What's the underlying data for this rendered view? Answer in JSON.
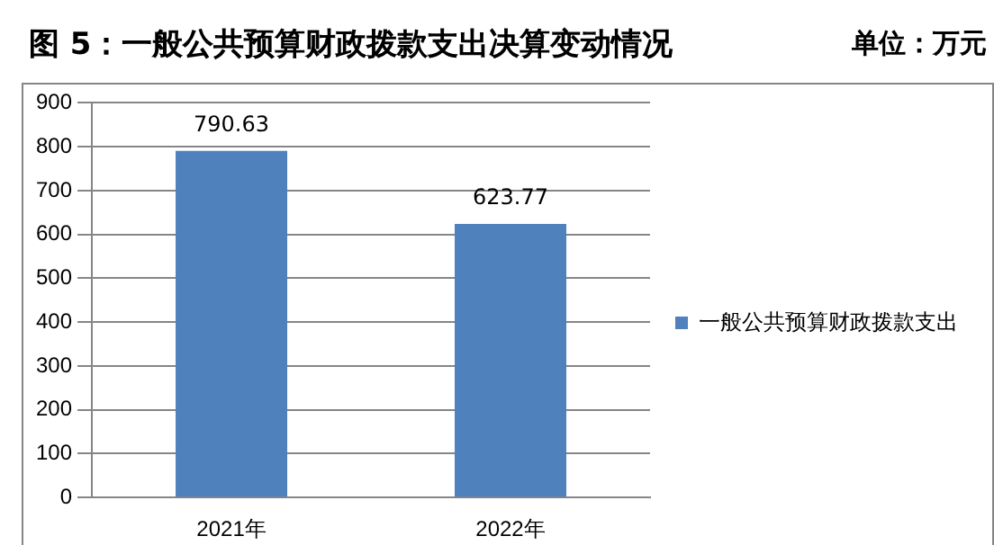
{
  "chart_data": {
    "type": "bar",
    "title": "图 5：一般公共预算财政拨款支出决算变动情况",
    "annotations": [
      "单位：万元"
    ],
    "categories": [
      "2021年",
      "2022年"
    ],
    "series": [
      {
        "name": "一般公共预算财政拨款支出",
        "color": "#4f81bd",
        "values": [
          790.63,
          623.77
        ]
      }
    ],
    "ylim": [
      0,
      900
    ],
    "yticks": [
      0,
      100,
      200,
      300,
      400,
      500,
      600,
      700,
      800,
      900
    ],
    "grid": "y",
    "legend": "right",
    "data_labels": true
  }
}
